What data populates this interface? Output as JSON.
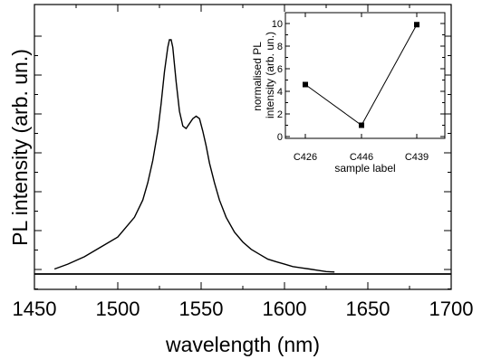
{
  "chart_data": [
    {
      "type": "line",
      "xlabel": "wavelength (nm)",
      "ylabel": "PL intensity (arb. un.)",
      "xlim": [
        1450,
        1700
      ],
      "ylim": [
        0,
        1
      ],
      "xticks": [
        1450,
        1500,
        1550,
        1600,
        1650,
        1700
      ],
      "y_tick_labels_shown": false,
      "grid": false,
      "series": [
        {
          "x": [
            1462,
            1470,
            1480,
            1490,
            1500,
            1505,
            1510,
            1515,
            1518,
            1521,
            1524,
            1526,
            1528,
            1530,
            1531,
            1532,
            1533,
            1535,
            1537,
            1539,
            1541,
            1543,
            1545,
            1547,
            1549,
            1551,
            1553,
            1555,
            1558,
            1561,
            1565,
            1570,
            1575,
            1580,
            1585,
            1590,
            1595,
            1600,
            1605,
            1610,
            1615,
            1620,
            1625,
            1630
          ],
          "y": [
            0.02,
            0.04,
            0.07,
            0.11,
            0.15,
            0.19,
            0.23,
            0.3,
            0.37,
            0.46,
            0.58,
            0.69,
            0.82,
            0.92,
            0.95,
            0.95,
            0.92,
            0.78,
            0.66,
            0.6,
            0.59,
            0.61,
            0.63,
            0.64,
            0.63,
            0.58,
            0.52,
            0.45,
            0.37,
            0.3,
            0.23,
            0.17,
            0.13,
            0.1,
            0.08,
            0.06,
            0.05,
            0.04,
            0.03,
            0.025,
            0.02,
            0.015,
            0.01,
            0.008
          ]
        }
      ],
      "baseline": 0
    },
    {
      "type": "line",
      "xlabel": "sample label",
      "ylabel": "normalised PL intensity (arb. un.)",
      "ylabel_lines": [
        "normalised PL",
        "intensity (arb. un.)"
      ],
      "categories": [
        "C426",
        "C446",
        "C439"
      ],
      "ylim": [
        0,
        11
      ],
      "yticks": [
        0,
        2,
        4,
        6,
        8,
        10
      ],
      "grid": false,
      "series": [
        {
          "values": [
            4.6,
            1.0,
            9.9
          ]
        }
      ]
    }
  ]
}
